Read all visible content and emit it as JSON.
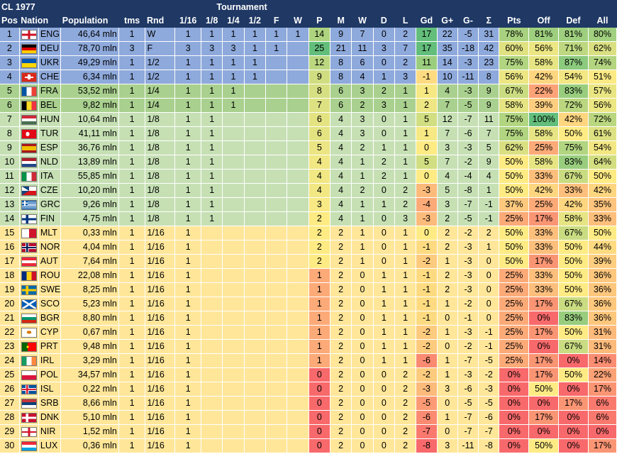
{
  "title": "CL 1977",
  "tournament_label": "Tournament",
  "headers": [
    "Pos",
    "Nation",
    "Population",
    "tms",
    "Rnd",
    "1/16",
    "1/8",
    "1/4",
    "1/2",
    "F",
    "W",
    "P",
    "M",
    "W",
    "D",
    "L",
    "Gd",
    "G+",
    "G-",
    "Σ",
    "Pts",
    "Off",
    "Def",
    "All"
  ],
  "colors": {
    "header": "#1f3864",
    "tier_blue": "#8ea9db",
    "tier_green": "#a9d08e",
    "tier_lightgreen": "#c6e0b4",
    "tier_yellow": "#ffe699",
    "heat_green": "#63be7b",
    "heat_yellow": "#ffeb84",
    "heat_red": "#f8696b"
  },
  "rows": [
    {
      "pos": "1",
      "flag": "eng",
      "nation": "ENG",
      "pop": "46,64 mln",
      "tms": "1",
      "rnd": "W",
      "r16": "1",
      "r8": "1",
      "r4": "1",
      "r2": "1",
      "f": "1",
      "w": "1",
      "p": "14",
      "m": "9",
      "wn": "7",
      "d": "0",
      "l": "2",
      "gd": "17",
      "gp": "22",
      "gm": "-5",
      "sig": "31",
      "pts": "78%",
      "off": "81%",
      "def": "81%",
      "all": "80%",
      "tier": "blue"
    },
    {
      "pos": "2",
      "flag": "deu",
      "nation": "DEU",
      "pop": "78,70 mln",
      "tms": "3",
      "rnd": "F",
      "r16": "3",
      "r8": "3",
      "r4": "3",
      "r2": "1",
      "f": "1",
      "w": "",
      "p": "25",
      "m": "21",
      "wn": "11",
      "d": "3",
      "l": "7",
      "gd": "17",
      "gp": "35",
      "gm": "-18",
      "sig": "42",
      "pts": "60%",
      "off": "56%",
      "def": "71%",
      "all": "62%",
      "tier": "blue"
    },
    {
      "pos": "3",
      "flag": "ukr",
      "nation": "UKR",
      "pop": "49,29 mln",
      "tms": "1",
      "rnd": "1/2",
      "r16": "1",
      "r8": "1",
      "r4": "1",
      "r2": "1",
      "f": "",
      "w": "",
      "p": "12",
      "m": "8",
      "wn": "6",
      "d": "0",
      "l": "2",
      "gd": "11",
      "gp": "14",
      "gm": "-3",
      "sig": "23",
      "pts": "75%",
      "off": "58%",
      "def": "87%",
      "all": "74%",
      "tier": "blue"
    },
    {
      "pos": "4",
      "flag": "che",
      "nation": "CHE",
      "pop": "6,34 mln",
      "tms": "1",
      "rnd": "1/2",
      "r16": "1",
      "r8": "1",
      "r4": "1",
      "r2": "1",
      "f": "",
      "w": "",
      "p": "9",
      "m": "8",
      "wn": "4",
      "d": "1",
      "l": "3",
      "gd": "-1",
      "gp": "10",
      "gm": "-11",
      "sig": "8",
      "pts": "56%",
      "off": "42%",
      "def": "54%",
      "all": "51%",
      "tier": "blue"
    },
    {
      "pos": "5",
      "flag": "fra",
      "nation": "FRA",
      "pop": "53,52 mln",
      "tms": "1",
      "rnd": "1/4",
      "r16": "1",
      "r8": "1",
      "r4": "1",
      "r2": "",
      "f": "",
      "w": "",
      "p": "8",
      "m": "6",
      "wn": "3",
      "d": "2",
      "l": "1",
      "gd": "1",
      "gp": "4",
      "gm": "-3",
      "sig": "9",
      "pts": "67%",
      "off": "22%",
      "def": "83%",
      "all": "57%",
      "tier": "green"
    },
    {
      "pos": "6",
      "flag": "bel",
      "nation": "BEL",
      "pop": "9,82 mln",
      "tms": "1",
      "rnd": "1/4",
      "r16": "1",
      "r8": "1",
      "r4": "1",
      "r2": "",
      "f": "",
      "w": "",
      "p": "7",
      "m": "6",
      "wn": "2",
      "d": "3",
      "l": "1",
      "gd": "2",
      "gp": "7",
      "gm": "-5",
      "sig": "9",
      "pts": "58%",
      "off": "39%",
      "def": "72%",
      "all": "56%",
      "tier": "green"
    },
    {
      "pos": "7",
      "flag": "hun",
      "nation": "HUN",
      "pop": "10,64 mln",
      "tms": "1",
      "rnd": "1/8",
      "r16": "1",
      "r8": "1",
      "r4": "",
      "r2": "",
      "f": "",
      "w": "",
      "p": "6",
      "m": "4",
      "wn": "3",
      "d": "0",
      "l": "1",
      "gd": "5",
      "gp": "12",
      "gm": "-7",
      "sig": "11",
      "pts": "75%",
      "off": "100%",
      "def": "42%",
      "all": "72%",
      "tier": "lightgreen"
    },
    {
      "pos": "8",
      "flag": "tur",
      "nation": "TUR",
      "pop": "41,11 mln",
      "tms": "1",
      "rnd": "1/8",
      "r16": "1",
      "r8": "1",
      "r4": "",
      "r2": "",
      "f": "",
      "w": "",
      "p": "6",
      "m": "4",
      "wn": "3",
      "d": "0",
      "l": "1",
      "gd": "1",
      "gp": "7",
      "gm": "-6",
      "sig": "7",
      "pts": "75%",
      "off": "58%",
      "def": "50%",
      "all": "61%",
      "tier": "lightgreen"
    },
    {
      "pos": "9",
      "flag": "esp",
      "nation": "ESP",
      "pop": "36,76 mln",
      "tms": "1",
      "rnd": "1/8",
      "r16": "1",
      "r8": "1",
      "r4": "",
      "r2": "",
      "f": "",
      "w": "",
      "p": "5",
      "m": "4",
      "wn": "2",
      "d": "1",
      "l": "1",
      "gd": "0",
      "gp": "3",
      "gm": "-3",
      "sig": "5",
      "pts": "62%",
      "off": "25%",
      "def": "75%",
      "all": "54%",
      "tier": "lightgreen"
    },
    {
      "pos": "10",
      "flag": "nld",
      "nation": "NLD",
      "pop": "13,89 mln",
      "tms": "1",
      "rnd": "1/8",
      "r16": "1",
      "r8": "1",
      "r4": "",
      "r2": "",
      "f": "",
      "w": "",
      "p": "4",
      "m": "4",
      "wn": "1",
      "d": "2",
      "l": "1",
      "gd": "5",
      "gp": "7",
      "gm": "-2",
      "sig": "9",
      "pts": "50%",
      "off": "58%",
      "def": "83%",
      "all": "64%",
      "tier": "lightgreen"
    },
    {
      "pos": "11",
      "flag": "ita",
      "nation": "ITA",
      "pop": "55,85 mln",
      "tms": "1",
      "rnd": "1/8",
      "r16": "1",
      "r8": "1",
      "r4": "",
      "r2": "",
      "f": "",
      "w": "",
      "p": "4",
      "m": "4",
      "wn": "1",
      "d": "2",
      "l": "1",
      "gd": "0",
      "gp": "4",
      "gm": "-4",
      "sig": "4",
      "pts": "50%",
      "off": "33%",
      "def": "67%",
      "all": "50%",
      "tier": "lightgreen"
    },
    {
      "pos": "12",
      "flag": "cze",
      "nation": "CZE",
      "pop": "10,20 mln",
      "tms": "1",
      "rnd": "1/8",
      "r16": "1",
      "r8": "1",
      "r4": "",
      "r2": "",
      "f": "",
      "w": "",
      "p": "4",
      "m": "4",
      "wn": "2",
      "d": "0",
      "l": "2",
      "gd": "-3",
      "gp": "5",
      "gm": "-8",
      "sig": "1",
      "pts": "50%",
      "off": "42%",
      "def": "33%",
      "all": "42%",
      "tier": "lightgreen"
    },
    {
      "pos": "13",
      "flag": "grc",
      "nation": "GRC",
      "pop": "9,26 mln",
      "tms": "1",
      "rnd": "1/8",
      "r16": "1",
      "r8": "1",
      "r4": "",
      "r2": "",
      "f": "",
      "w": "",
      "p": "3",
      "m": "4",
      "wn": "1",
      "d": "1",
      "l": "2",
      "gd": "-4",
      "gp": "3",
      "gm": "-7",
      "sig": "-1",
      "pts": "37%",
      "off": "25%",
      "def": "42%",
      "all": "35%",
      "tier": "lightgreen"
    },
    {
      "pos": "14",
      "flag": "fin",
      "nation": "FIN",
      "pop": "4,75 mln",
      "tms": "1",
      "rnd": "1/8",
      "r16": "1",
      "r8": "1",
      "r4": "",
      "r2": "",
      "f": "",
      "w": "",
      "p": "2",
      "m": "4",
      "wn": "1",
      "d": "0",
      "l": "3",
      "gd": "-3",
      "gp": "2",
      "gm": "-5",
      "sig": "-1",
      "pts": "25%",
      "off": "17%",
      "def": "58%",
      "all": "33%",
      "tier": "lightgreen"
    },
    {
      "pos": "15",
      "flag": "mlt",
      "nation": "MLT",
      "pop": "0,33 mln",
      "tms": "1",
      "rnd": "1/16",
      "r16": "1",
      "r8": "",
      "r4": "",
      "r2": "",
      "f": "",
      "w": "",
      "p": "2",
      "m": "2",
      "wn": "1",
      "d": "0",
      "l": "1",
      "gd": "0",
      "gp": "2",
      "gm": "-2",
      "sig": "2",
      "pts": "50%",
      "off": "33%",
      "def": "67%",
      "all": "50%",
      "tier": "yellow"
    },
    {
      "pos": "16",
      "flag": "nor",
      "nation": "NOR",
      "pop": "4,04 mln",
      "tms": "1",
      "rnd": "1/16",
      "r16": "1",
      "r8": "",
      "r4": "",
      "r2": "",
      "f": "",
      "w": "",
      "p": "2",
      "m": "2",
      "wn": "1",
      "d": "0",
      "l": "1",
      "gd": "-1",
      "gp": "2",
      "gm": "-3",
      "sig": "1",
      "pts": "50%",
      "off": "33%",
      "def": "50%",
      "all": "44%",
      "tier": "yellow"
    },
    {
      "pos": "17",
      "flag": "aut",
      "nation": "AUT",
      "pop": "7,64 mln",
      "tms": "1",
      "rnd": "1/16",
      "r16": "1",
      "r8": "",
      "r4": "",
      "r2": "",
      "f": "",
      "w": "",
      "p": "2",
      "m": "2",
      "wn": "1",
      "d": "0",
      "l": "1",
      "gd": "-2",
      "gp": "1",
      "gm": "-3",
      "sig": "0",
      "pts": "50%",
      "off": "17%",
      "def": "50%",
      "all": "39%",
      "tier": "yellow"
    },
    {
      "pos": "18",
      "flag": "rou",
      "nation": "ROU",
      "pop": "22,08 mln",
      "tms": "1",
      "rnd": "1/16",
      "r16": "1",
      "r8": "",
      "r4": "",
      "r2": "",
      "f": "",
      "w": "",
      "p": "1",
      "m": "2",
      "wn": "0",
      "d": "1",
      "l": "1",
      "gd": "-1",
      "gp": "2",
      "gm": "-3",
      "sig": "0",
      "pts": "25%",
      "off": "33%",
      "def": "50%",
      "all": "36%",
      "tier": "yellow"
    },
    {
      "pos": "19",
      "flag": "swe",
      "nation": "SWE",
      "pop": "8,25 mln",
      "tms": "1",
      "rnd": "1/16",
      "r16": "1",
      "r8": "",
      "r4": "",
      "r2": "",
      "f": "",
      "w": "",
      "p": "1",
      "m": "2",
      "wn": "0",
      "d": "1",
      "l": "1",
      "gd": "-1",
      "gp": "2",
      "gm": "-3",
      "sig": "0",
      "pts": "25%",
      "off": "33%",
      "def": "50%",
      "all": "36%",
      "tier": "yellow"
    },
    {
      "pos": "20",
      "flag": "sco",
      "nation": "SCO",
      "pop": "5,23 mln",
      "tms": "1",
      "rnd": "1/16",
      "r16": "1",
      "r8": "",
      "r4": "",
      "r2": "",
      "f": "",
      "w": "",
      "p": "1",
      "m": "2",
      "wn": "0",
      "d": "1",
      "l": "1",
      "gd": "-1",
      "gp": "1",
      "gm": "-2",
      "sig": "0",
      "pts": "25%",
      "off": "17%",
      "def": "67%",
      "all": "36%",
      "tier": "yellow"
    },
    {
      "pos": "21",
      "flag": "bgr",
      "nation": "BGR",
      "pop": "8,80 mln",
      "tms": "1",
      "rnd": "1/16",
      "r16": "1",
      "r8": "",
      "r4": "",
      "r2": "",
      "f": "",
      "w": "",
      "p": "1",
      "m": "2",
      "wn": "0",
      "d": "1",
      "l": "1",
      "gd": "-1",
      "gp": "0",
      "gm": "-1",
      "sig": "0",
      "pts": "25%",
      "off": "0%",
      "def": "83%",
      "all": "36%",
      "tier": "yellow"
    },
    {
      "pos": "22",
      "flag": "cyp",
      "nation": "CYP",
      "pop": "0,67 mln",
      "tms": "1",
      "rnd": "1/16",
      "r16": "1",
      "r8": "",
      "r4": "",
      "r2": "",
      "f": "",
      "w": "",
      "p": "1",
      "m": "2",
      "wn": "0",
      "d": "1",
      "l": "1",
      "gd": "-2",
      "gp": "1",
      "gm": "-3",
      "sig": "-1",
      "pts": "25%",
      "off": "17%",
      "def": "50%",
      "all": "31%",
      "tier": "yellow"
    },
    {
      "pos": "23",
      "flag": "prt",
      "nation": "PRT",
      "pop": "9,48 mln",
      "tms": "1",
      "rnd": "1/16",
      "r16": "1",
      "r8": "",
      "r4": "",
      "r2": "",
      "f": "",
      "w": "",
      "p": "1",
      "m": "2",
      "wn": "0",
      "d": "1",
      "l": "1",
      "gd": "-2",
      "gp": "0",
      "gm": "-2",
      "sig": "-1",
      "pts": "25%",
      "off": "0%",
      "def": "67%",
      "all": "31%",
      "tier": "yellow"
    },
    {
      "pos": "24",
      "flag": "irl",
      "nation": "IRL",
      "pop": "3,29 mln",
      "tms": "1",
      "rnd": "1/16",
      "r16": "1",
      "r8": "",
      "r4": "",
      "r2": "",
      "f": "",
      "w": "",
      "p": "1",
      "m": "2",
      "wn": "0",
      "d": "1",
      "l": "1",
      "gd": "-6",
      "gp": "1",
      "gm": "-7",
      "sig": "-5",
      "pts": "25%",
      "off": "17%",
      "def": "0%",
      "all": "14%",
      "tier": "yellow"
    },
    {
      "pos": "25",
      "flag": "pol",
      "nation": "POL",
      "pop": "34,57 mln",
      "tms": "1",
      "rnd": "1/16",
      "r16": "1",
      "r8": "",
      "r4": "",
      "r2": "",
      "f": "",
      "w": "",
      "p": "0",
      "m": "2",
      "wn": "0",
      "d": "0",
      "l": "2",
      "gd": "-2",
      "gp": "1",
      "gm": "-3",
      "sig": "-2",
      "pts": "0%",
      "off": "17%",
      "def": "50%",
      "all": "22%",
      "tier": "yellow"
    },
    {
      "pos": "26",
      "flag": "isl",
      "nation": "ISL",
      "pop": "0,22 mln",
      "tms": "1",
      "rnd": "1/16",
      "r16": "1",
      "r8": "",
      "r4": "",
      "r2": "",
      "f": "",
      "w": "",
      "p": "0",
      "m": "2",
      "wn": "0",
      "d": "0",
      "l": "2",
      "gd": "-3",
      "gp": "3",
      "gm": "-6",
      "sig": "-3",
      "pts": "0%",
      "off": "50%",
      "def": "0%",
      "all": "17%",
      "tier": "yellow"
    },
    {
      "pos": "27",
      "flag": "srb",
      "nation": "SRB",
      "pop": "8,66 mln",
      "tms": "1",
      "rnd": "1/16",
      "r16": "1",
      "r8": "",
      "r4": "",
      "r2": "",
      "f": "",
      "w": "",
      "p": "0",
      "m": "2",
      "wn": "0",
      "d": "0",
      "l": "2",
      "gd": "-5",
      "gp": "0",
      "gm": "-5",
      "sig": "-5",
      "pts": "0%",
      "off": "0%",
      "def": "17%",
      "all": "6%",
      "tier": "yellow"
    },
    {
      "pos": "28",
      "flag": "dnk",
      "nation": "DNK",
      "pop": "5,10 mln",
      "tms": "1",
      "rnd": "1/16",
      "r16": "1",
      "r8": "",
      "r4": "",
      "r2": "",
      "f": "",
      "w": "",
      "p": "0",
      "m": "2",
      "wn": "0",
      "d": "0",
      "l": "2",
      "gd": "-6",
      "gp": "1",
      "gm": "-7",
      "sig": "-6",
      "pts": "0%",
      "off": "17%",
      "def": "0%",
      "all": "6%",
      "tier": "yellow"
    },
    {
      "pos": "29",
      "flag": "nir",
      "nation": "NIR",
      "pop": "1,52 mln",
      "tms": "1",
      "rnd": "1/16",
      "r16": "1",
      "r8": "",
      "r4": "",
      "r2": "",
      "f": "",
      "w": "",
      "p": "0",
      "m": "2",
      "wn": "0",
      "d": "0",
      "l": "2",
      "gd": "-7",
      "gp": "0",
      "gm": "-7",
      "sig": "-7",
      "pts": "0%",
      "off": "0%",
      "def": "0%",
      "all": "0%",
      "tier": "yellow"
    },
    {
      "pos": "30",
      "flag": "lux",
      "nation": "LUX",
      "pop": "0,36 mln",
      "tms": "1",
      "rnd": "1/16",
      "r16": "1",
      "r8": "",
      "r4": "",
      "r2": "",
      "f": "",
      "w": "",
      "p": "0",
      "m": "2",
      "wn": "0",
      "d": "0",
      "l": "2",
      "gd": "-8",
      "gp": "3",
      "gm": "-11",
      "sig": "-8",
      "pts": "0%",
      "off": "50%",
      "def": "0%",
      "all": "17%",
      "tier": "yellow"
    }
  ]
}
